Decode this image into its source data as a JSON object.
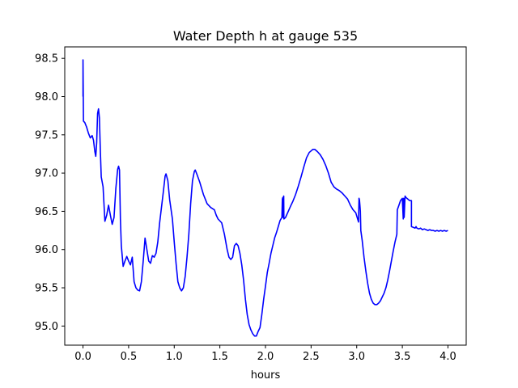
{
  "chart_data": {
    "type": "line",
    "title": "Water Depth h at gauge 535",
    "xlabel": "hours",
    "ylabel": "",
    "xlim": [
      -0.2,
      4.2
    ],
    "ylim": [
      94.75,
      98.65
    ],
    "xticks": [
      0.0,
      0.5,
      1.0,
      1.5,
      2.0,
      2.5,
      3.0,
      3.5,
      4.0
    ],
    "xtick_labels": [
      "0.0",
      "0.5",
      "1.0",
      "1.5",
      "2.0",
      "2.5",
      "3.0",
      "3.5",
      "4.0"
    ],
    "yticks": [
      95.0,
      95.5,
      96.0,
      96.5,
      97.0,
      97.5,
      98.0,
      98.5
    ],
    "ytick_labels": [
      "95.0",
      "95.5",
      "96.0",
      "96.5",
      "97.0",
      "97.5",
      "98.0",
      "98.5"
    ],
    "grid": false,
    "series": [
      {
        "color": "#0000ff",
        "points": [
          [
            0.0,
            98.0
          ],
          [
            0.0,
            98.48
          ],
          [
            0.003,
            98.0
          ],
          [
            0.005,
            97.68
          ],
          [
            0.02,
            97.66
          ],
          [
            0.04,
            97.6
          ],
          [
            0.06,
            97.52
          ],
          [
            0.08,
            97.46
          ],
          [
            0.1,
            97.49
          ],
          [
            0.115,
            97.43
          ],
          [
            0.13,
            97.28
          ],
          [
            0.14,
            97.22
          ],
          [
            0.15,
            97.4
          ],
          [
            0.16,
            97.78
          ],
          [
            0.17,
            97.84
          ],
          [
            0.18,
            97.72
          ],
          [
            0.19,
            97.3
          ],
          [
            0.2,
            96.95
          ],
          [
            0.22,
            96.82
          ],
          [
            0.24,
            96.37
          ],
          [
            0.26,
            96.45
          ],
          [
            0.28,
            96.58
          ],
          [
            0.3,
            96.45
          ],
          [
            0.32,
            96.33
          ],
          [
            0.34,
            96.42
          ],
          [
            0.36,
            96.8
          ],
          [
            0.38,
            97.05
          ],
          [
            0.39,
            97.09
          ],
          [
            0.4,
            97.04
          ],
          [
            0.41,
            96.4
          ],
          [
            0.42,
            96.05
          ],
          [
            0.44,
            95.78
          ],
          [
            0.46,
            95.85
          ],
          [
            0.48,
            95.91
          ],
          [
            0.5,
            95.85
          ],
          [
            0.52,
            95.8
          ],
          [
            0.54,
            95.9
          ],
          [
            0.56,
            95.58
          ],
          [
            0.58,
            95.5
          ],
          [
            0.6,
            95.47
          ],
          [
            0.62,
            95.46
          ],
          [
            0.64,
            95.58
          ],
          [
            0.66,
            95.85
          ],
          [
            0.68,
            96.15
          ],
          [
            0.7,
            96.0
          ],
          [
            0.72,
            95.85
          ],
          [
            0.74,
            95.82
          ],
          [
            0.76,
            95.92
          ],
          [
            0.78,
            95.9
          ],
          [
            0.8,
            95.95
          ],
          [
            0.82,
            96.1
          ],
          [
            0.84,
            96.35
          ],
          [
            0.86,
            96.55
          ],
          [
            0.88,
            96.75
          ],
          [
            0.9,
            96.96
          ],
          [
            0.91,
            96.99
          ],
          [
            0.93,
            96.9
          ],
          [
            0.95,
            96.65
          ],
          [
            0.98,
            96.4
          ],
          [
            1.0,
            96.1
          ],
          [
            1.02,
            95.82
          ],
          [
            1.04,
            95.58
          ],
          [
            1.06,
            95.5
          ],
          [
            1.08,
            95.46
          ],
          [
            1.1,
            95.5
          ],
          [
            1.12,
            95.65
          ],
          [
            1.14,
            95.9
          ],
          [
            1.16,
            96.2
          ],
          [
            1.18,
            96.6
          ],
          [
            1.2,
            96.9
          ],
          [
            1.22,
            97.02
          ],
          [
            1.23,
            97.04
          ],
          [
            1.25,
            96.98
          ],
          [
            1.28,
            96.88
          ],
          [
            1.32,
            96.72
          ],
          [
            1.36,
            96.6
          ],
          [
            1.4,
            96.55
          ],
          [
            1.44,
            96.52
          ],
          [
            1.46,
            96.45
          ],
          [
            1.48,
            96.4
          ],
          [
            1.52,
            96.35
          ],
          [
            1.55,
            96.2
          ],
          [
            1.58,
            96.0
          ],
          [
            1.6,
            95.9
          ],
          [
            1.62,
            95.87
          ],
          [
            1.64,
            95.9
          ],
          [
            1.66,
            96.05
          ],
          [
            1.68,
            96.08
          ],
          [
            1.7,
            96.05
          ],
          [
            1.72,
            95.95
          ],
          [
            1.74,
            95.8
          ],
          [
            1.76,
            95.6
          ],
          [
            1.78,
            95.35
          ],
          [
            1.8,
            95.15
          ],
          [
            1.82,
            95.02
          ],
          [
            1.84,
            94.95
          ],
          [
            1.86,
            94.9
          ],
          [
            1.88,
            94.87
          ],
          [
            1.9,
            94.87
          ],
          [
            1.92,
            94.93
          ],
          [
            1.94,
            94.98
          ],
          [
            1.96,
            95.15
          ],
          [
            1.98,
            95.35
          ],
          [
            2.0,
            95.52
          ],
          [
            2.02,
            95.7
          ],
          [
            2.04,
            95.82
          ],
          [
            2.06,
            95.95
          ],
          [
            2.08,
            96.05
          ],
          [
            2.1,
            96.15
          ],
          [
            2.12,
            96.22
          ],
          [
            2.14,
            96.3
          ],
          [
            2.16,
            96.38
          ],
          [
            2.17,
            96.4
          ],
          [
            2.18,
            96.42
          ],
          [
            2.185,
            96.66
          ],
          [
            2.19,
            96.68
          ],
          [
            2.193,
            96.42
          ],
          [
            2.197,
            96.68
          ],
          [
            2.2,
            96.7
          ],
          [
            2.202,
            96.4
          ],
          [
            2.22,
            96.42
          ],
          [
            2.25,
            96.5
          ],
          [
            2.28,
            96.58
          ],
          [
            2.3,
            96.63
          ],
          [
            2.33,
            96.72
          ],
          [
            2.36,
            96.83
          ],
          [
            2.39,
            96.95
          ],
          [
            2.42,
            97.08
          ],
          [
            2.45,
            97.2
          ],
          [
            2.48,
            97.27
          ],
          [
            2.5,
            97.29
          ],
          [
            2.52,
            97.31
          ],
          [
            2.54,
            97.31
          ],
          [
            2.57,
            97.28
          ],
          [
            2.6,
            97.24
          ],
          [
            2.63,
            97.18
          ],
          [
            2.66,
            97.1
          ],
          [
            2.69,
            97.0
          ],
          [
            2.72,
            96.88
          ],
          [
            2.75,
            96.82
          ],
          [
            2.78,
            96.79
          ],
          [
            2.81,
            96.77
          ],
          [
            2.84,
            96.74
          ],
          [
            2.87,
            96.7
          ],
          [
            2.9,
            96.66
          ],
          [
            2.93,
            96.58
          ],
          [
            2.96,
            96.52
          ],
          [
            2.99,
            96.48
          ],
          [
            3.01,
            96.4
          ],
          [
            3.02,
            96.36
          ],
          [
            3.025,
            96.67
          ],
          [
            3.03,
            96.65
          ],
          [
            3.035,
            96.58
          ],
          [
            3.04,
            96.5
          ],
          [
            3.045,
            96.25
          ],
          [
            3.06,
            96.12
          ],
          [
            3.08,
            95.9
          ],
          [
            3.1,
            95.72
          ],
          [
            3.12,
            95.56
          ],
          [
            3.14,
            95.43
          ],
          [
            3.16,
            95.35
          ],
          [
            3.18,
            95.3
          ],
          [
            3.2,
            95.28
          ],
          [
            3.22,
            95.28
          ],
          [
            3.24,
            95.3
          ],
          [
            3.26,
            95.33
          ],
          [
            3.28,
            95.38
          ],
          [
            3.3,
            95.43
          ],
          [
            3.32,
            95.5
          ],
          [
            3.34,
            95.6
          ],
          [
            3.36,
            95.72
          ],
          [
            3.38,
            95.85
          ],
          [
            3.4,
            95.98
          ],
          [
            3.42,
            96.1
          ],
          [
            3.44,
            96.2
          ],
          [
            3.445,
            96.52
          ],
          [
            3.46,
            96.57
          ],
          [
            3.48,
            96.64
          ],
          [
            3.5,
            96.67
          ],
          [
            3.51,
            96.4
          ],
          [
            3.515,
            96.67
          ],
          [
            3.52,
            96.42
          ],
          [
            3.53,
            96.7
          ],
          [
            3.54,
            96.68
          ],
          [
            3.56,
            96.66
          ],
          [
            3.58,
            96.64
          ],
          [
            3.6,
            96.64
          ],
          [
            3.6,
            96.3
          ],
          [
            3.62,
            96.29
          ],
          [
            3.64,
            96.28
          ],
          [
            3.65,
            96.3
          ],
          [
            3.66,
            96.28
          ],
          [
            3.68,
            96.27
          ],
          [
            3.7,
            96.28
          ],
          [
            3.72,
            96.26
          ],
          [
            3.74,
            96.27
          ],
          [
            3.76,
            96.26
          ],
          [
            3.78,
            96.25
          ],
          [
            3.8,
            96.26
          ],
          [
            3.82,
            96.25
          ],
          [
            3.84,
            96.25
          ],
          [
            3.86,
            96.24
          ],
          [
            3.88,
            96.25
          ],
          [
            3.9,
            96.24
          ],
          [
            3.92,
            96.25
          ],
          [
            3.94,
            96.24
          ],
          [
            3.96,
            96.25
          ],
          [
            3.98,
            96.24
          ],
          [
            4.0,
            96.25
          ]
        ]
      }
    ]
  }
}
